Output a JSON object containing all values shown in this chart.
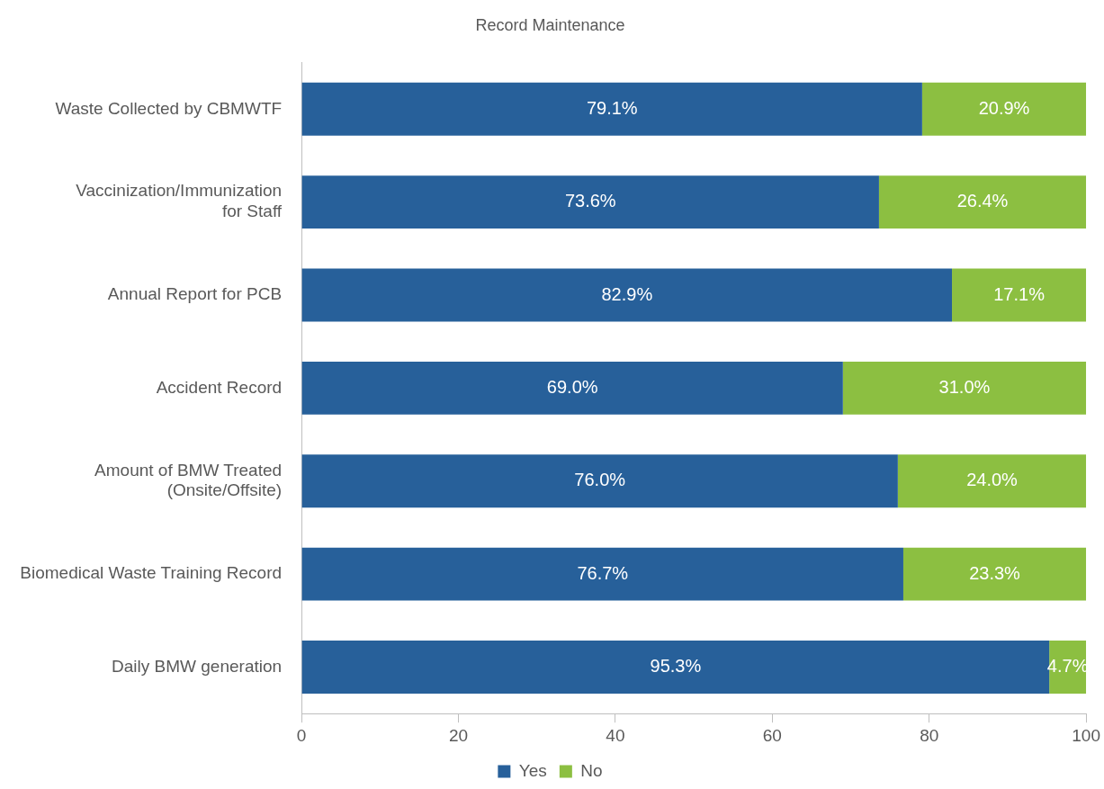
{
  "chart_data": {
    "type": "bar",
    "orientation": "horizontal",
    "stacked": true,
    "title": "Record Maintenance",
    "categories": [
      "Waste Collected by CBMWTF",
      "Vaccinization/Immunization for Staff",
      "Annual Report for PCB",
      "Accident Record",
      "Amount of BMW Treated (Onsite/Offsite)",
      "Biomedical Waste Training Record",
      "Daily BMW generation"
    ],
    "series": [
      {
        "name": "Yes",
        "color": "#27609a",
        "values": [
          79.1,
          73.6,
          82.9,
          69.0,
          76.0,
          76.7,
          95.3
        ],
        "value_labels": [
          "79.1%",
          "73.6%",
          "82.9%",
          "69.0%",
          "76.0%",
          "76.7%",
          "95.3%"
        ]
      },
      {
        "name": "No",
        "color": "#8cbf41",
        "values": [
          20.9,
          26.4,
          17.1,
          31.0,
          24.0,
          23.3,
          4.7
        ],
        "value_labels": [
          "20.9%",
          "26.4%",
          "17.1%",
          "31.0%",
          "24.0%",
          "23.3%",
          "4.7%"
        ]
      }
    ],
    "xlim": [
      0,
      100
    ],
    "xticks": [
      0,
      20,
      40,
      60,
      80,
      100
    ],
    "grid": false,
    "legend": "bottom"
  }
}
